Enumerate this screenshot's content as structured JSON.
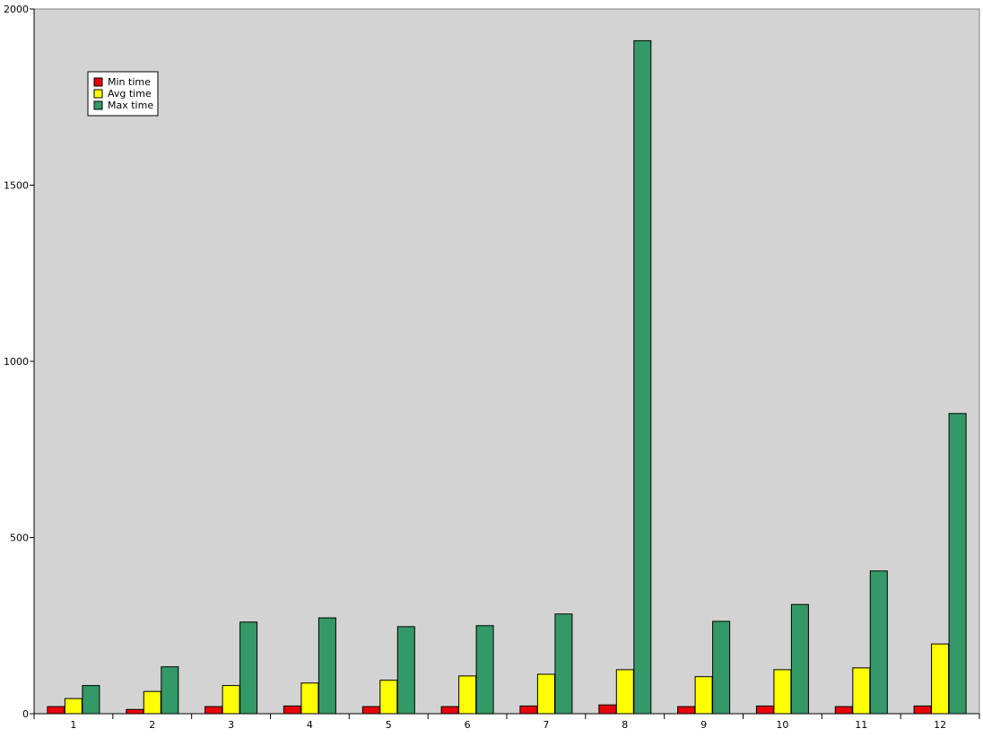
{
  "chart_data": {
    "type": "bar",
    "title": "",
    "xlabel": "",
    "ylabel": "",
    "categories": [
      "1",
      "2",
      "3",
      "4",
      "5",
      "6",
      "7",
      "8",
      "9",
      "10",
      "11",
      "12"
    ],
    "series": [
      {
        "name": "Min time",
        "color": "#e8000b",
        "values": [
          20,
          12,
          20,
          22,
          20,
          20,
          22,
          25,
          20,
          22,
          20,
          22
        ]
      },
      {
        "name": "Avg time",
        "color": "#ffff00",
        "values": [
          43,
          63,
          80,
          87,
          95,
          107,
          112,
          125,
          105,
          125,
          130,
          198
        ]
      },
      {
        "name": "Max time",
        "color": "#339966",
        "values": [
          80,
          133,
          260,
          272,
          247,
          250,
          283,
          1910,
          262,
          310,
          405,
          852
        ]
      }
    ],
    "ylim": [
      0,
      2000
    ],
    "yticks": [
      0,
      500,
      1000,
      1500,
      2000
    ],
    "ytick_labels": [
      "0",
      "500",
      "1000",
      "1500",
      "2000"
    ],
    "grid": false,
    "plot_background": "#d3d3d3",
    "legend_placement": "top-left"
  }
}
